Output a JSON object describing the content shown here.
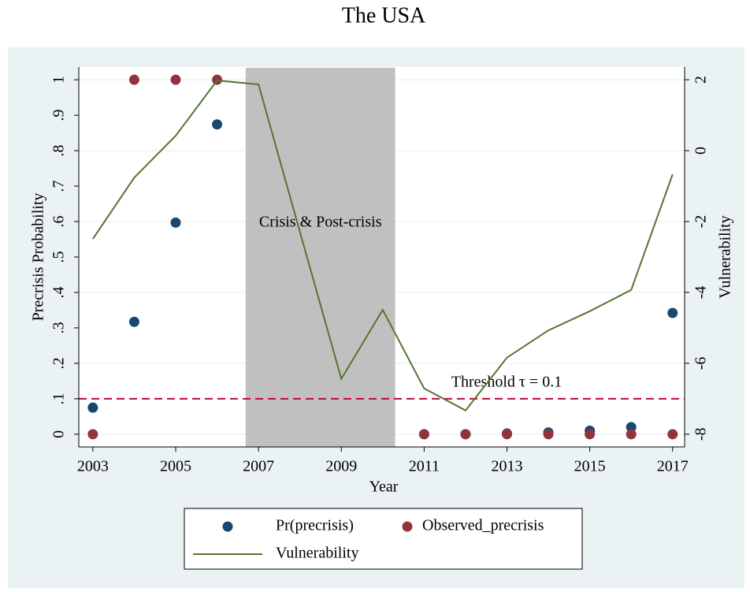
{
  "chart_data": {
    "type": "scatter",
    "title": "The USA",
    "xlabel": "Year",
    "ylabel": "Precrisis Probability",
    "y2label": "Vulnerability",
    "x": [
      2003,
      2004,
      2005,
      2006,
      2007,
      2008,
      2009,
      2010,
      2011,
      2012,
      2013,
      2014,
      2015,
      2016,
      2017
    ],
    "series": [
      {
        "name": "Pr(precrisis)",
        "kind": "scatter",
        "color": "#1a476f",
        "values": [
          0.075,
          0.317,
          0.597,
          0.874,
          null,
          null,
          null,
          null,
          0,
          0,
          0.002,
          0.005,
          0.01,
          0.02,
          0.342
        ]
      },
      {
        "name": "Observed_precrisis",
        "kind": "scatter",
        "color": "#90353b",
        "values": [
          0,
          1,
          1,
          1,
          null,
          null,
          null,
          null,
          0,
          0,
          0,
          0,
          0,
          0,
          0
        ]
      },
      {
        "name": "Vulnerability",
        "kind": "line",
        "axis": "y2",
        "color": "#55752f",
        "values": [
          -2.49,
          -0.76,
          0.42,
          1.98,
          1.87,
          -2.29,
          -6.44,
          -4.49,
          -6.71,
          -7.33,
          -5.84,
          -5.07,
          -4.53,
          -3.93,
          -0.67
        ]
      }
    ],
    "shade": [
      2006.69,
      2010.3
    ],
    "shade_label": "Crisis & Post-crisis",
    "threshold": 0.1,
    "threshold_label": "Threshold τ = 0.1",
    "xlim": [
      2002.66,
      2017.29
    ],
    "xticks": [
      2003,
      2005,
      2007,
      2009,
      2011,
      2013,
      2015,
      2017
    ],
    "ylim": [
      -0.036,
      1.036
    ],
    "yticks": [
      0,
      {
        "value": 0.1,
        "label": ".1"
      },
      {
        "value": 0.2,
        "label": ".2"
      },
      {
        "value": 0.3,
        "label": ".3"
      },
      {
        "value": 0.4,
        "label": ".4"
      },
      {
        "value": 0.5,
        "label": ".5"
      },
      {
        "value": 0.6,
        "label": ".6"
      },
      {
        "value": 0.7,
        "label": ".7"
      },
      {
        "value": 0.8,
        "label": ".8"
      },
      {
        "value": 0.9,
        "label": ".9"
      },
      1
    ],
    "y2lim": [
      -8.36,
      2.36
    ],
    "y2ticks": [
      -8,
      -6,
      -4,
      -2,
      0,
      2
    ],
    "grid": true,
    "legend": "bottom"
  }
}
